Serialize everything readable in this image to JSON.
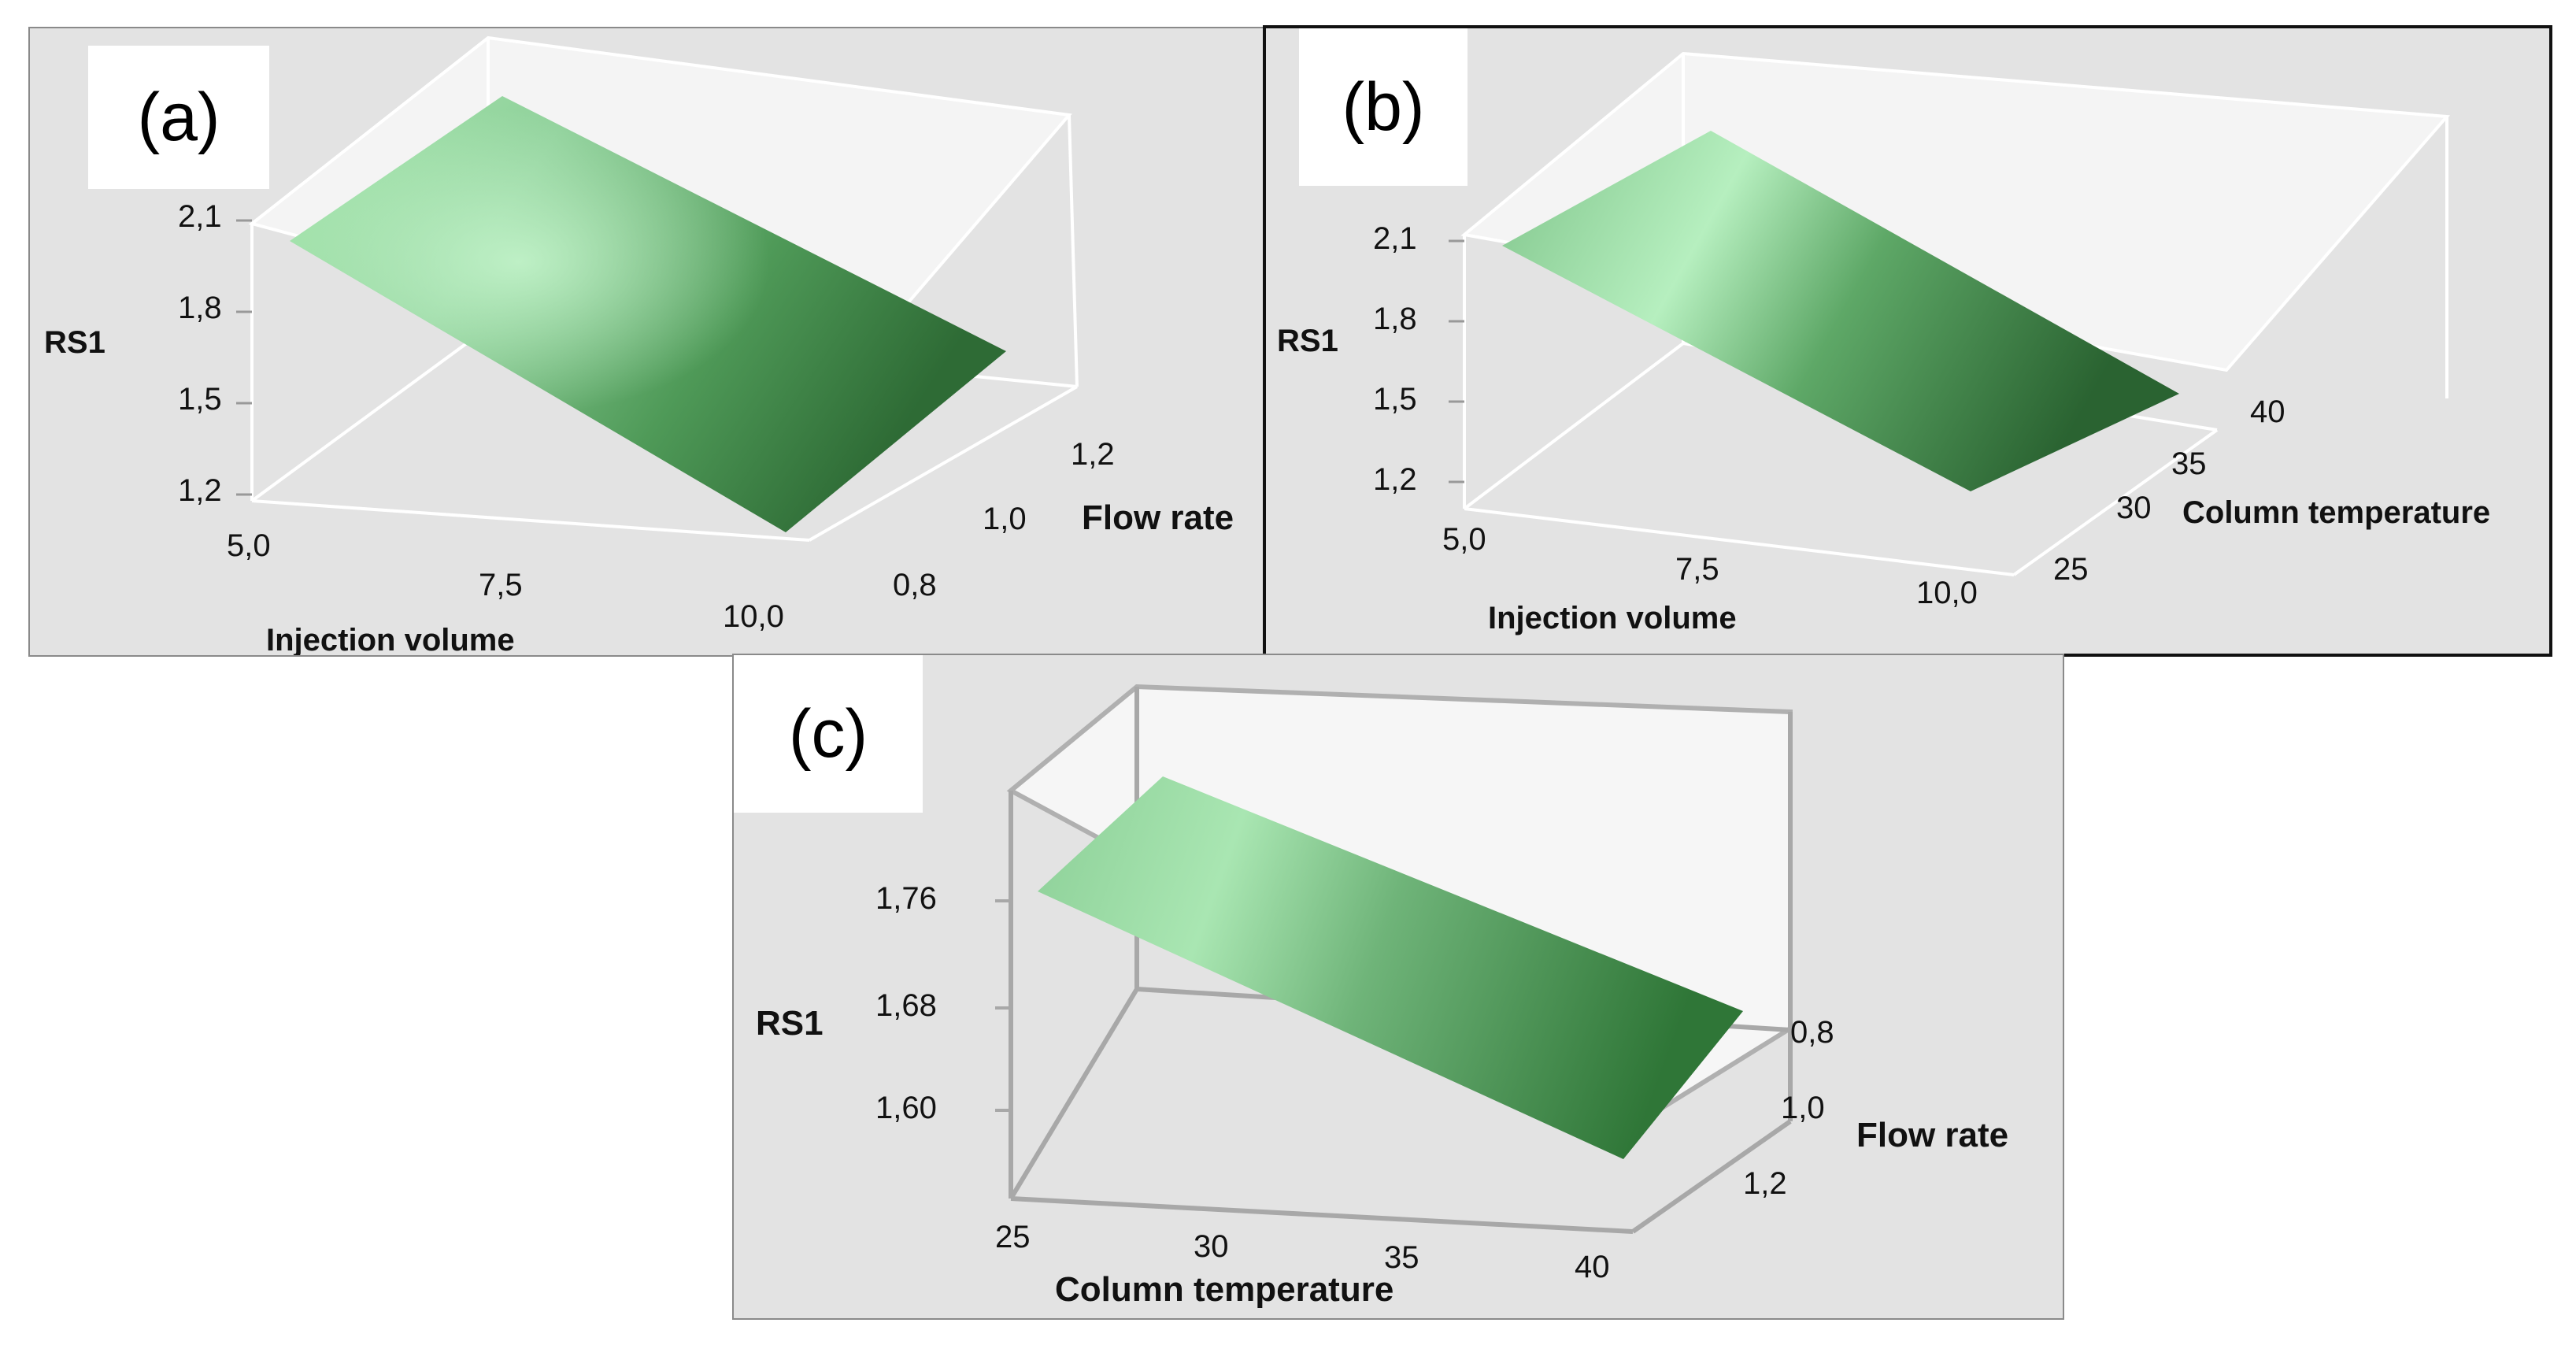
{
  "panels": [
    {
      "tag": "(a)",
      "zlabel": "RS1",
      "xlabel": "Injection volume",
      "ylabel": "Flow rate",
      "zticks": [
        "2,1",
        "1,8",
        "1,5",
        "1,2"
      ],
      "xticks": [
        "5,0",
        "7,5",
        "10,0"
      ],
      "yticks": [
        "0,8",
        "1,0",
        "1,2"
      ]
    },
    {
      "tag": "(b)",
      "zlabel": "RS1",
      "xlabel": "Injection volume",
      "ylabel": "Column temperature",
      "zticks": [
        "2,1",
        "1,8",
        "1,5",
        "1,2"
      ],
      "xticks": [
        "5,0",
        "7,5",
        "10,0"
      ],
      "yticks": [
        "25",
        "30",
        "35",
        "40"
      ]
    },
    {
      "tag": "(c)",
      "zlabel": "RS1",
      "xlabel": "Column temperature",
      "ylabel": "Flow rate",
      "zticks": [
        "1,76",
        "1,68",
        "1,60"
      ],
      "xticks": [
        "25",
        "30",
        "35",
        "40"
      ],
      "yticks": [
        "0,8",
        "1,0",
        "1,2"
      ]
    }
  ],
  "chart_data": [
    {
      "type": "surface",
      "panel": "(a)",
      "z_label": "RS1",
      "x_label": "Injection volume",
      "y_label": "Flow rate",
      "x_range": [
        5.0,
        10.0
      ],
      "y_range": [
        0.8,
        1.2
      ],
      "z_range": [
        1.2,
        2.1
      ],
      "surface_color": "#3f8a48"
    },
    {
      "type": "surface",
      "panel": "(b)",
      "z_label": "RS1",
      "x_label": "Injection volume",
      "y_label": "Column temperature",
      "x_range": [
        5.0,
        10.0
      ],
      "y_range": [
        25,
        40
      ],
      "z_range": [
        1.2,
        2.1
      ],
      "surface_color": "#3f8a48"
    },
    {
      "type": "surface",
      "panel": "(c)",
      "z_label": "RS1",
      "x_label": "Column temperature",
      "y_label": "Flow rate",
      "x_range": [
        25,
        40
      ],
      "y_range": [
        0.8,
        1.2
      ],
      "z_range": [
        1.6,
        1.76
      ],
      "surface_color": "#3f8a48"
    }
  ]
}
